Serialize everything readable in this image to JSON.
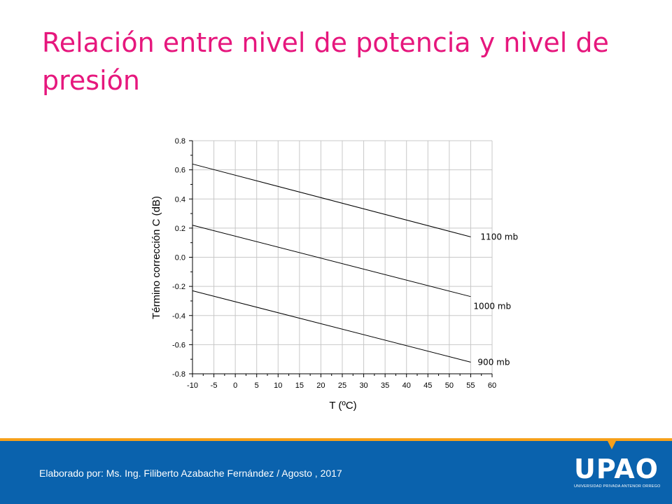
{
  "slide": {
    "title": "Relación entre nivel de potencia y nivel de presión",
    "footer_credit": "Elaborado por: Ms. Ing. Filiberto Azabache Fernández / Agosto , 2017",
    "logo_text": "UPAO",
    "logo_subtext": "UNIVERSIDAD PRIVADA ANTENOR ORREGO",
    "colors": {
      "title": "#e6177d",
      "footer": "#0a62ad",
      "accent": "#f6a01a"
    }
  },
  "chart_data": {
    "type": "line",
    "title": "",
    "xlabel": "T (ºC)",
    "ylabel": "Término corrección C (dB)",
    "xlim": [
      -10,
      60
    ],
    "ylim": [
      -0.8,
      0.8
    ],
    "xticks": [
      "-10",
      "-5",
      "0",
      "5",
      "10",
      "15",
      "20",
      "25",
      "30",
      "35",
      "40",
      "45",
      "50",
      "55",
      "60"
    ],
    "yticks": [
      "0.8",
      "0.6",
      "0.4",
      "0.2",
      "0.0",
      "-0.2",
      "-0.4",
      "-0.6",
      "-0.8"
    ],
    "grid": true,
    "series": [
      {
        "name": "1100 mb",
        "x": [
          -10,
          55
        ],
        "values": [
          0.64,
          0.14
        ]
      },
      {
        "name": "1000 mb",
        "x": [
          -10,
          55
        ],
        "values": [
          0.22,
          -0.27
        ]
      },
      {
        "name": "900 mb",
        "x": [
          -10,
          55
        ],
        "values": [
          -0.23,
          -0.72
        ]
      }
    ]
  }
}
